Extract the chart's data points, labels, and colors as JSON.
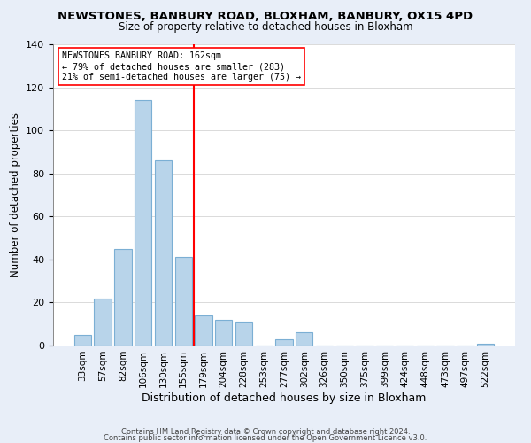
{
  "title": "NEWSTONES, BANBURY ROAD, BLOXHAM, BANBURY, OX15 4PD",
  "subtitle": "Size of property relative to detached houses in Bloxham",
  "xlabel": "Distribution of detached houses by size in Bloxham",
  "ylabel": "Number of detached properties",
  "bar_labels": [
    "33sqm",
    "57sqm",
    "82sqm",
    "106sqm",
    "130sqm",
    "155sqm",
    "179sqm",
    "204sqm",
    "228sqm",
    "253sqm",
    "277sqm",
    "302sqm",
    "326sqm",
    "350sqm",
    "375sqm",
    "399sqm",
    "424sqm",
    "448sqm",
    "473sqm",
    "497sqm",
    "522sqm"
  ],
  "bar_values": [
    5,
    22,
    45,
    114,
    86,
    41,
    14,
    12,
    11,
    0,
    3,
    6,
    0,
    0,
    0,
    0,
    0,
    0,
    0,
    0,
    1
  ],
  "bar_color": "#b8d4ea",
  "bar_edge_color": "#7bafd4",
  "vline_x": 5.5,
  "vline_color": "red",
  "annotation_title": "NEWSTONES BANBURY ROAD: 162sqm",
  "annotation_line1": "← 79% of detached houses are smaller (283)",
  "annotation_line2": "21% of semi-detached houses are larger (75) →",
  "ylim": [
    0,
    140
  ],
  "yticks": [
    0,
    20,
    40,
    60,
    80,
    100,
    120,
    140
  ],
  "footer1": "Contains HM Land Registry data © Crown copyright and database right 2024.",
  "footer2": "Contains public sector information licensed under the Open Government Licence v3.0.",
  "bg_color": "#e8eef8",
  "plot_bg_color": "#ffffff"
}
